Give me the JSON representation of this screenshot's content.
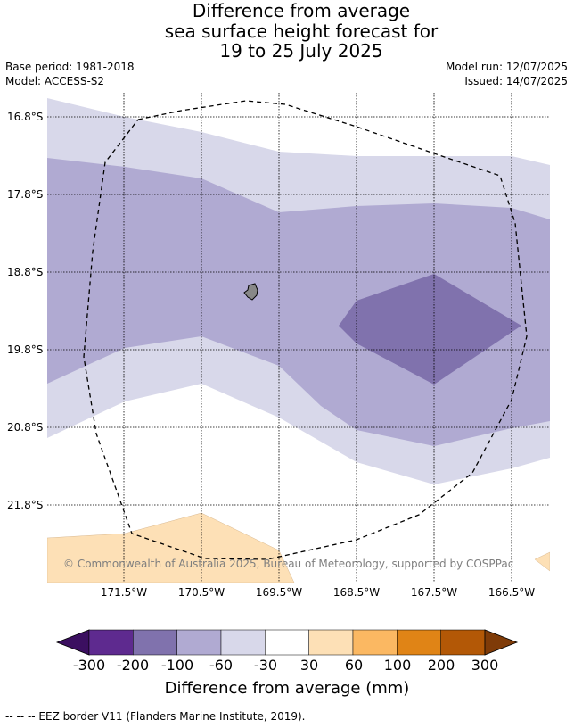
{
  "title": {
    "line1": "Difference from average",
    "line2": "sea surface height forecast for",
    "line3": "19 to 25 July 2025"
  },
  "meta": {
    "base_period": "Base period: 1981-2018",
    "model": "Model: ACCESS-S2",
    "model_run": "Model run: 12/07/2025",
    "issued": "Issued: 14/07/2025"
  },
  "map": {
    "lat_labels": [
      "16.8°S",
      "17.8°S",
      "18.8°S",
      "19.8°S",
      "20.8°S",
      "21.8°S"
    ],
    "lon_labels": [
      "171.5°W",
      "170.5°W",
      "169.5°W",
      "168.5°W",
      "167.5°W",
      "166.5°W"
    ],
    "credit": "© Commonwealth of Australia 2025, Bureau of Meteorology, supported by COSPPac",
    "colors": {
      "light_purple": "#d8d8ea",
      "mid_purple": "#b0aad2",
      "dark_purple": "#8072ad",
      "light_orange": "#fde0b6",
      "island": "#888888"
    }
  },
  "colorbar": {
    "ticks": [
      "-300",
      "-200",
      "-100",
      "-60",
      "-30",
      "30",
      "60",
      "100",
      "200",
      "300"
    ],
    "colors": [
      "#3b0f60",
      "#5e2a8f",
      "#8072ad",
      "#b0aad2",
      "#d8d8ea",
      "#ffffff",
      "#fde0b6",
      "#fbb862",
      "#e08416",
      "#b35806",
      "#7f3b08"
    ],
    "label": "Difference from average (mm)"
  },
  "footer": {
    "legend": "--  --  -- EEZ border V11 (Flanders Marine Institute, 2019)."
  }
}
